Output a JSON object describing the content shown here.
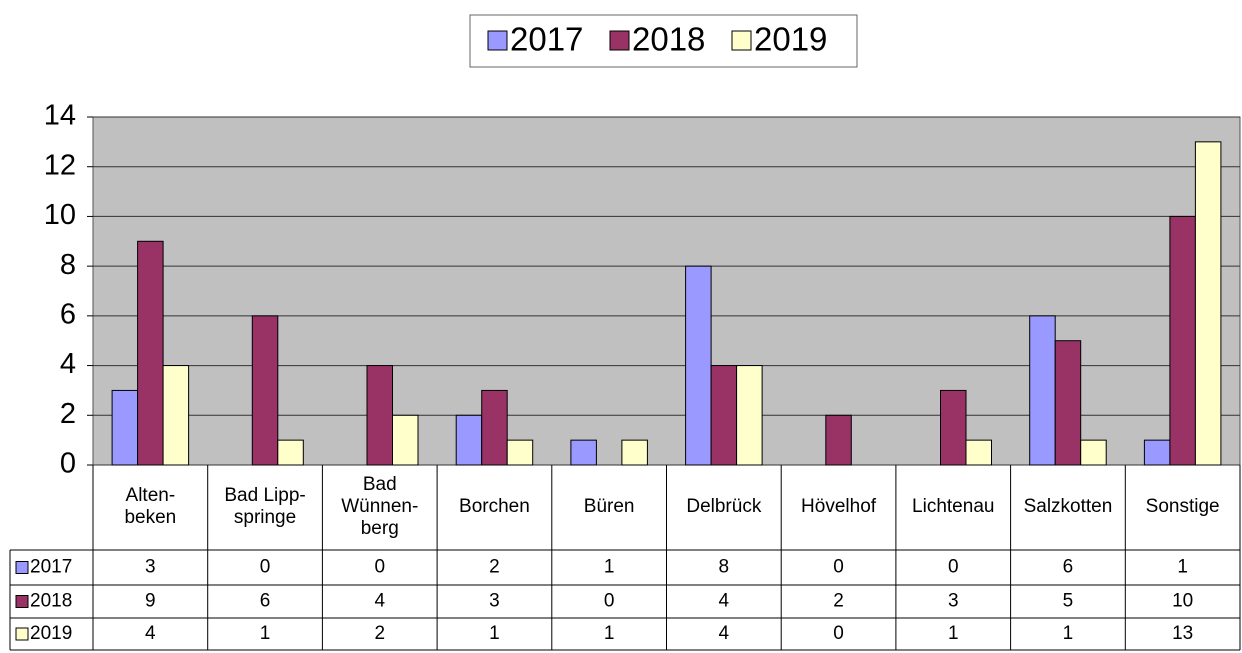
{
  "chart_data": {
    "type": "bar",
    "categories": [
      [
        "Alten-",
        "beken"
      ],
      [
        "Bad Lipp-",
        "springe"
      ],
      [
        "Bad",
        "Wünnen-",
        "berg"
      ],
      [
        "Borchen"
      ],
      [
        "Büren"
      ],
      [
        "Delbrück"
      ],
      [
        "Hövelhof"
      ],
      [
        "Lichtenau"
      ],
      [
        "Salzkotten"
      ],
      [
        "Sonstige"
      ]
    ],
    "series": [
      {
        "name": "2017",
        "color": "#9999ff",
        "values": [
          3,
          0,
          0,
          2,
          1,
          8,
          0,
          0,
          6,
          1
        ]
      },
      {
        "name": "2018",
        "color": "#993366",
        "values": [
          9,
          6,
          4,
          3,
          0,
          4,
          2,
          3,
          5,
          10
        ]
      },
      {
        "name": "2019",
        "color": "#ffffcc",
        "values": [
          4,
          1,
          2,
          1,
          1,
          4,
          0,
          1,
          1,
          13
        ]
      }
    ],
    "ylim": [
      0,
      14
    ],
    "yticks": [
      0,
      2,
      4,
      6,
      8,
      10,
      12,
      14
    ],
    "grid": true,
    "legend": "top"
  }
}
